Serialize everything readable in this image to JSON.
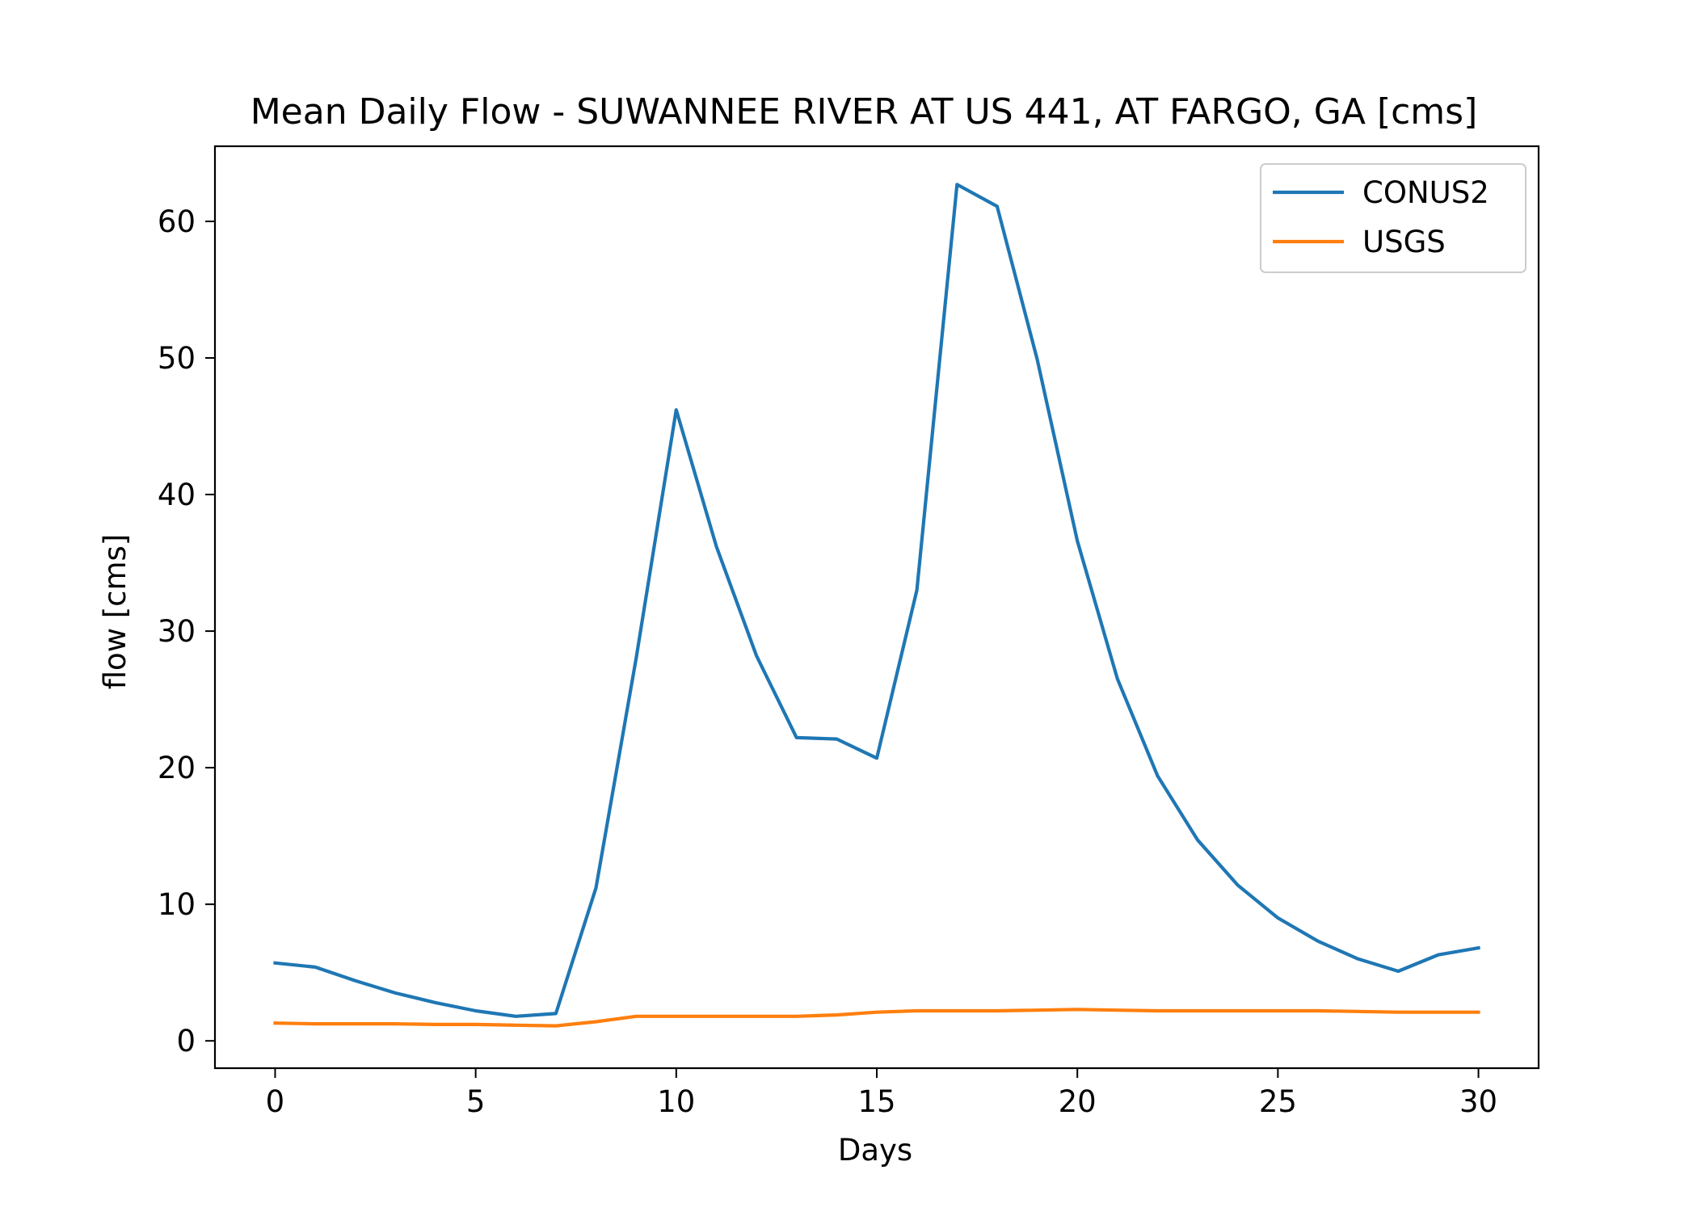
{
  "chart_data": {
    "type": "line",
    "title": "Mean Daily Flow - SUWANNEE RIVER AT US 441, AT FARGO, GA [cms]",
    "xlabel": "Days",
    "ylabel": "flow [cms]",
    "xlim": [
      -1.5,
      31.5
    ],
    "ylim": [
      -2,
      65.5
    ],
    "xticks": [
      0,
      5,
      10,
      15,
      20,
      25,
      30
    ],
    "yticks": [
      0,
      10,
      20,
      30,
      40,
      50,
      60
    ],
    "grid": false,
    "legend_position": "upper right",
    "x": [
      0,
      1,
      2,
      3,
      4,
      5,
      6,
      7,
      8,
      9,
      10,
      11,
      12,
      13,
      14,
      15,
      16,
      17,
      18,
      19,
      20,
      21,
      22,
      23,
      24,
      25,
      26,
      27,
      28,
      29,
      30
    ],
    "series": [
      {
        "name": "CONUS2",
        "color": "#1f77b4",
        "values": [
          5.7,
          5.4,
          4.4,
          3.5,
          2.8,
          2.2,
          1.8,
          2.0,
          11.2,
          28.0,
          46.2,
          36.2,
          28.2,
          22.2,
          22.1,
          20.7,
          33.0,
          62.7,
          61.1,
          49.9,
          36.6,
          26.5,
          19.4,
          14.7,
          11.4,
          9.0,
          7.3,
          6.0,
          5.1,
          6.3,
          6.8
        ]
      },
      {
        "name": "USGS",
        "color": "#ff7f0e",
        "values": [
          1.3,
          1.25,
          1.25,
          1.25,
          1.2,
          1.2,
          1.15,
          1.1,
          1.4,
          1.8,
          1.8,
          1.8,
          1.8,
          1.8,
          1.9,
          2.1,
          2.2,
          2.2,
          2.2,
          2.25,
          2.3,
          2.25,
          2.2,
          2.2,
          2.2,
          2.2,
          2.2,
          2.15,
          2.1,
          2.1,
          2.1
        ]
      }
    ]
  }
}
